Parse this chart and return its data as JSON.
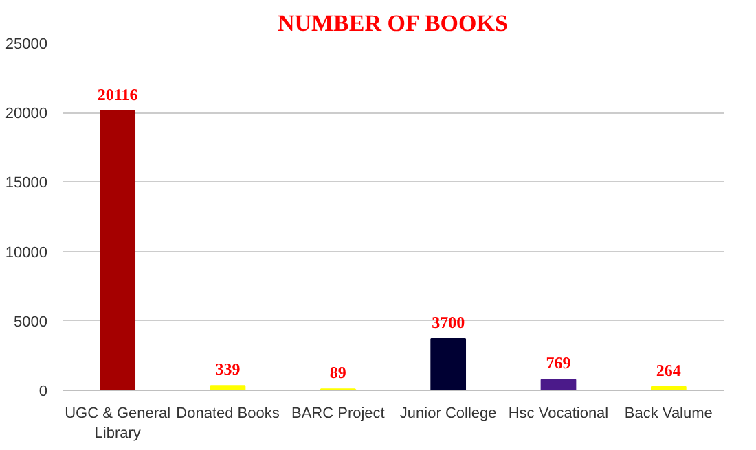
{
  "chart_data": {
    "type": "bar",
    "title": "NUMBER OF BOOKS",
    "categories": [
      "UGC & General Library",
      "Donated Books",
      "BARC Project",
      "Junior College",
      "Hsc Vocational",
      "Back Valume"
    ],
    "values": [
      20116,
      339,
      89,
      3700,
      769,
      264
    ],
    "colors": [
      "#a50000",
      "#ffff00",
      "#ffff00",
      "#000033",
      "#4b1a8a",
      "#ffff00"
    ],
    "ylim": [
      0,
      25000
    ],
    "yticks": [
      0,
      5000,
      10000,
      15000,
      20000,
      25000
    ],
    "grid": "y",
    "data_labels": true
  }
}
